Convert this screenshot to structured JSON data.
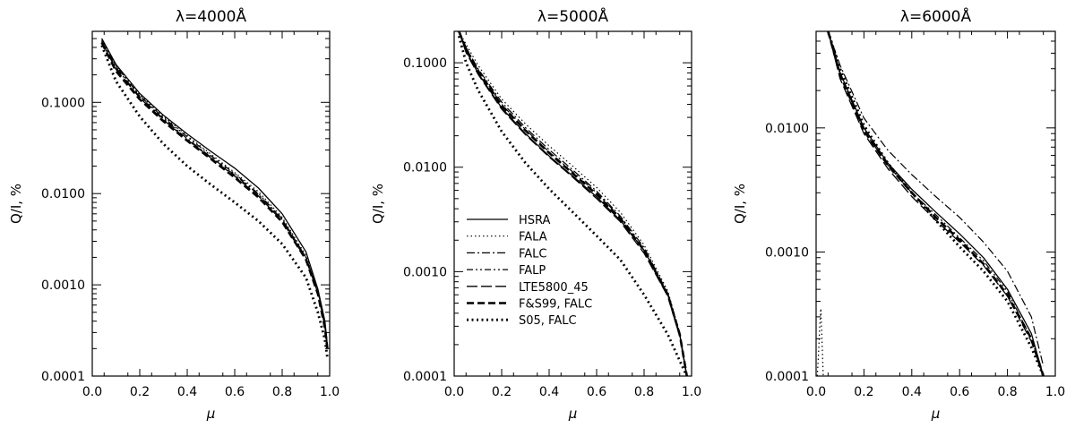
{
  "chart_data": [
    {
      "type": "line",
      "title": "λ=4000Å",
      "xlabel": "μ",
      "ylabel": "Q/I, %",
      "xlim": [
        0.0,
        1.0
      ],
      "ylim": [
        0.0001,
        0.6
      ],
      "yscale": "log",
      "xticks": [
        "0.0",
        "0.2",
        "0.4",
        "0.6",
        "0.8",
        "1.0"
      ],
      "yticks": [
        {
          "v": 0.0001,
          "label": "0.0001"
        },
        {
          "v": 0.001,
          "label": "0.0010"
        },
        {
          "v": 0.01,
          "label": "0.0100"
        },
        {
          "v": 0.1,
          "label": "0.1000"
        }
      ],
      "legend": false,
      "series": [
        {
          "name": "HSRA",
          "style": "solid",
          "x": [
            0.04,
            0.1,
            0.2,
            0.3,
            0.4,
            0.5,
            0.6,
            0.7,
            0.8,
            0.9,
            0.95,
            0.98,
            0.99
          ],
          "y": [
            0.5,
            0.26,
            0.125,
            0.072,
            0.045,
            0.029,
            0.019,
            0.0115,
            0.006,
            0.0023,
            0.0009,
            0.0004,
            0.00022
          ]
        },
        {
          "name": "FALA",
          "style": "dotted-thin",
          "x": [
            0.04,
            0.1,
            0.2,
            0.3,
            0.4,
            0.5,
            0.6,
            0.7,
            0.8,
            0.9,
            0.95,
            0.98,
            0.99
          ],
          "y": [
            0.48,
            0.25,
            0.12,
            0.07,
            0.043,
            0.027,
            0.017,
            0.0105,
            0.0055,
            0.0021,
            0.0009,
            0.00038,
            0.0002
          ]
        },
        {
          "name": "FALC",
          "style": "dashdot",
          "x": [
            0.04,
            0.1,
            0.2,
            0.3,
            0.4,
            0.5,
            0.6,
            0.7,
            0.8,
            0.9,
            0.95,
            0.98,
            0.99
          ],
          "y": [
            0.47,
            0.24,
            0.115,
            0.066,
            0.04,
            0.025,
            0.016,
            0.0098,
            0.0052,
            0.002,
            0.00085,
            0.00036,
            0.0002
          ]
        },
        {
          "name": "FALP",
          "style": "dashdotdot",
          "x": [
            0.04,
            0.1,
            0.2,
            0.3,
            0.4,
            0.5,
            0.6,
            0.7,
            0.8,
            0.9,
            0.95,
            0.98,
            0.99
          ],
          "y": [
            0.5,
            0.25,
            0.118,
            0.068,
            0.042,
            0.026,
            0.0165,
            0.01,
            0.0053,
            0.002,
            0.00086,
            0.00037,
            0.0002
          ]
        },
        {
          "name": "LTE5800_45",
          "style": "longdash",
          "x": [
            0.04,
            0.1,
            0.2,
            0.3,
            0.4,
            0.5,
            0.6,
            0.7,
            0.8,
            0.9,
            0.95,
            0.98,
            0.99
          ],
          "y": [
            0.46,
            0.23,
            0.112,
            0.064,
            0.039,
            0.0245,
            0.0155,
            0.0094,
            0.005,
            0.0019,
            0.00082,
            0.00035,
            0.0002
          ]
        },
        {
          "name": "F&S99, FALC",
          "style": "thickdash",
          "x": [
            0.04,
            0.1,
            0.2,
            0.3,
            0.4,
            0.5,
            0.6,
            0.7,
            0.8,
            0.9,
            0.95,
            0.98,
            0.99
          ],
          "y": [
            0.45,
            0.22,
            0.108,
            0.062,
            0.038,
            0.024,
            0.015,
            0.0091,
            0.0049,
            0.0019,
            0.0008,
            0.00034,
            0.0002
          ]
        },
        {
          "name": "S05, FALC",
          "style": "thickdot",
          "x": [
            0.04,
            0.1,
            0.2,
            0.3,
            0.4,
            0.5,
            0.6,
            0.7,
            0.8,
            0.9,
            0.95,
            0.98,
            0.99
          ],
          "y": [
            0.42,
            0.17,
            0.07,
            0.035,
            0.02,
            0.0125,
            0.008,
            0.005,
            0.0028,
            0.0012,
            0.0005,
            0.00025,
            0.00016
          ]
        }
      ]
    },
    {
      "type": "line",
      "title": "λ=5000Å",
      "xlabel": "μ",
      "ylabel": "Q/I, %",
      "xlim": [
        0.0,
        1.0
      ],
      "ylim": [
        0.0001,
        0.2
      ],
      "yscale": "log",
      "xticks": [
        "0.0",
        "0.2",
        "0.4",
        "0.6",
        "0.8",
        "1.0"
      ],
      "yticks": [
        {
          "v": 0.0001,
          "label": "0.0001"
        },
        {
          "v": 0.001,
          "label": "0.0010"
        },
        {
          "v": 0.01,
          "label": "0.0100"
        },
        {
          "v": 0.1,
          "label": "0.1000"
        }
      ],
      "legend": true,
      "series": [
        {
          "name": "HSRA",
          "style": "solid",
          "x": [
            0.02,
            0.05,
            0.1,
            0.2,
            0.3,
            0.4,
            0.5,
            0.6,
            0.7,
            0.8,
            0.9,
            0.95,
            0.98
          ],
          "y": [
            0.2,
            0.13,
            0.08,
            0.037,
            0.021,
            0.0128,
            0.0082,
            0.0052,
            0.0031,
            0.0016,
            0.0006,
            0.00025,
            0.0001
          ]
        },
        {
          "name": "FALA",
          "style": "dotted-thin",
          "x": [
            0.02,
            0.05,
            0.1,
            0.2,
            0.3,
            0.4,
            0.5,
            0.6,
            0.7,
            0.8,
            0.9,
            0.95,
            0.98
          ],
          "y": [
            0.2,
            0.15,
            0.095,
            0.045,
            0.026,
            0.016,
            0.0102,
            0.0064,
            0.0037,
            0.0018,
            0.00065,
            0.00026,
            0.0001
          ]
        },
        {
          "name": "FALC",
          "style": "dashdot",
          "x": [
            0.02,
            0.05,
            0.1,
            0.2,
            0.3,
            0.4,
            0.5,
            0.6,
            0.7,
            0.8,
            0.9,
            0.95,
            0.98
          ],
          "y": [
            0.2,
            0.14,
            0.088,
            0.042,
            0.024,
            0.0147,
            0.0094,
            0.0059,
            0.0034,
            0.0017,
            0.00062,
            0.00025,
            0.0001
          ]
        },
        {
          "name": "FALP",
          "style": "dashdotdot",
          "x": [
            0.02,
            0.05,
            0.1,
            0.2,
            0.3,
            0.4,
            0.5,
            0.6,
            0.7,
            0.8,
            0.9,
            0.95,
            0.98
          ],
          "y": [
            0.2,
            0.135,
            0.085,
            0.04,
            0.023,
            0.014,
            0.009,
            0.0057,
            0.0033,
            0.0016,
            0.0006,
            0.00025,
            0.0001
          ]
        },
        {
          "name": "LTE5800_45",
          "style": "longdash",
          "x": [
            0.02,
            0.05,
            0.1,
            0.2,
            0.3,
            0.4,
            0.5,
            0.6,
            0.7,
            0.8,
            0.9,
            0.95,
            0.98
          ],
          "y": [
            0.2,
            0.125,
            0.078,
            0.036,
            0.0205,
            0.0125,
            0.008,
            0.005,
            0.003,
            0.0015,
            0.00058,
            0.00024,
            0.0001
          ]
        },
        {
          "name": "F&S99, FALC",
          "style": "thickdash",
          "x": [
            0.02,
            0.05,
            0.1,
            0.2,
            0.3,
            0.4,
            0.5,
            0.6,
            0.7,
            0.8,
            0.9,
            0.95,
            0.98
          ],
          "y": [
            0.2,
            0.135,
            0.084,
            0.039,
            0.0225,
            0.0137,
            0.0087,
            0.0055,
            0.0032,
            0.0016,
            0.0006,
            0.00025,
            0.0001
          ]
        },
        {
          "name": "S05, FALC",
          "style": "thickdot",
          "x": [
            0.02,
            0.05,
            0.1,
            0.2,
            0.3,
            0.4,
            0.5,
            0.6,
            0.7,
            0.8,
            0.9,
            0.95,
            0.98
          ],
          "y": [
            0.18,
            0.1,
            0.055,
            0.022,
            0.011,
            0.0062,
            0.0037,
            0.0022,
            0.0013,
            0.0006,
            0.00025,
            0.00014,
            0.0001
          ]
        }
      ]
    },
    {
      "type": "line",
      "title": "λ=6000Å",
      "xlabel": "μ",
      "ylabel": "Q/I, %",
      "xlim": [
        0.0,
        1.0
      ],
      "ylim": [
        0.0001,
        0.06
      ],
      "yscale": "log",
      "xticks": [
        "0.0",
        "0.2",
        "0.4",
        "0.6",
        "0.8",
        "1.0"
      ],
      "yticks": [
        {
          "v": 0.0001,
          "label": "0.0001"
        },
        {
          "v": 0.001,
          "label": "0.0010"
        },
        {
          "v": 0.01,
          "label": "0.0100"
        }
      ],
      "legend": false,
      "series": [
        {
          "name": "HSRA",
          "style": "solid",
          "x": [
            0.05,
            0.1,
            0.2,
            0.3,
            0.4,
            0.5,
            0.6,
            0.7,
            0.8,
            0.9,
            0.95
          ],
          "y": [
            0.06,
            0.028,
            0.01,
            0.0052,
            0.0032,
            0.0021,
            0.0014,
            0.0009,
            0.0005,
            0.00022,
            0.0001
          ]
        },
        {
          "name": "FALA",
          "style": "dotted-thin",
          "x": [
            0.005,
            0.01,
            0.015,
            0.02,
            0.03
          ],
          "y": [
            0.0001,
            0.00015,
            0.00025,
            0.00035,
            0.0001
          ]
        },
        {
          "name": "FALC",
          "style": "dashdot",
          "x": [
            0.05,
            0.1,
            0.2,
            0.3,
            0.4,
            0.5,
            0.6,
            0.7,
            0.8,
            0.9,
            0.95
          ],
          "y": [
            0.06,
            0.032,
            0.012,
            0.0066,
            0.0042,
            0.0028,
            0.0019,
            0.0012,
            0.0007,
            0.0003,
            0.00012
          ]
        },
        {
          "name": "FALP",
          "style": "dashdotdot",
          "x": [
            0.05,
            0.1,
            0.2,
            0.3,
            0.4,
            0.5,
            0.6,
            0.7,
            0.8,
            0.9,
            0.95
          ],
          "y": [
            0.06,
            0.027,
            0.0095,
            0.005,
            0.003,
            0.002,
            0.0013,
            0.00085,
            0.00048,
            0.0002,
            0.0001
          ]
        },
        {
          "name": "LTE5800_45",
          "style": "longdash",
          "x": [
            0.05,
            0.1,
            0.2,
            0.3,
            0.4,
            0.5,
            0.6,
            0.7,
            0.8,
            0.9,
            0.95
          ],
          "y": [
            0.06,
            0.025,
            0.009,
            0.0047,
            0.0028,
            0.0018,
            0.0012,
            0.00078,
            0.00044,
            0.00019,
            0.0001
          ]
        },
        {
          "name": "F&S99, FALC",
          "style": "thickdash",
          "x": [
            0.05,
            0.1,
            0.2,
            0.3,
            0.4,
            0.5,
            0.6,
            0.7,
            0.8,
            0.9,
            0.95
          ],
          "y": [
            0.06,
            0.027,
            0.0095,
            0.005,
            0.003,
            0.0019,
            0.00125,
            0.0008,
            0.00045,
            0.0002,
            0.0001
          ]
        },
        {
          "name": "S05, FALC",
          "style": "thickdot",
          "x": [
            0.05,
            0.1,
            0.2,
            0.3,
            0.4,
            0.5,
            0.6,
            0.7,
            0.8,
            0.9,
            0.95
          ],
          "y": [
            0.06,
            0.03,
            0.0105,
            0.0052,
            0.003,
            0.0018,
            0.0011,
            0.0007,
            0.0004,
            0.00017,
            0.0001
          ]
        }
      ]
    }
  ]
}
